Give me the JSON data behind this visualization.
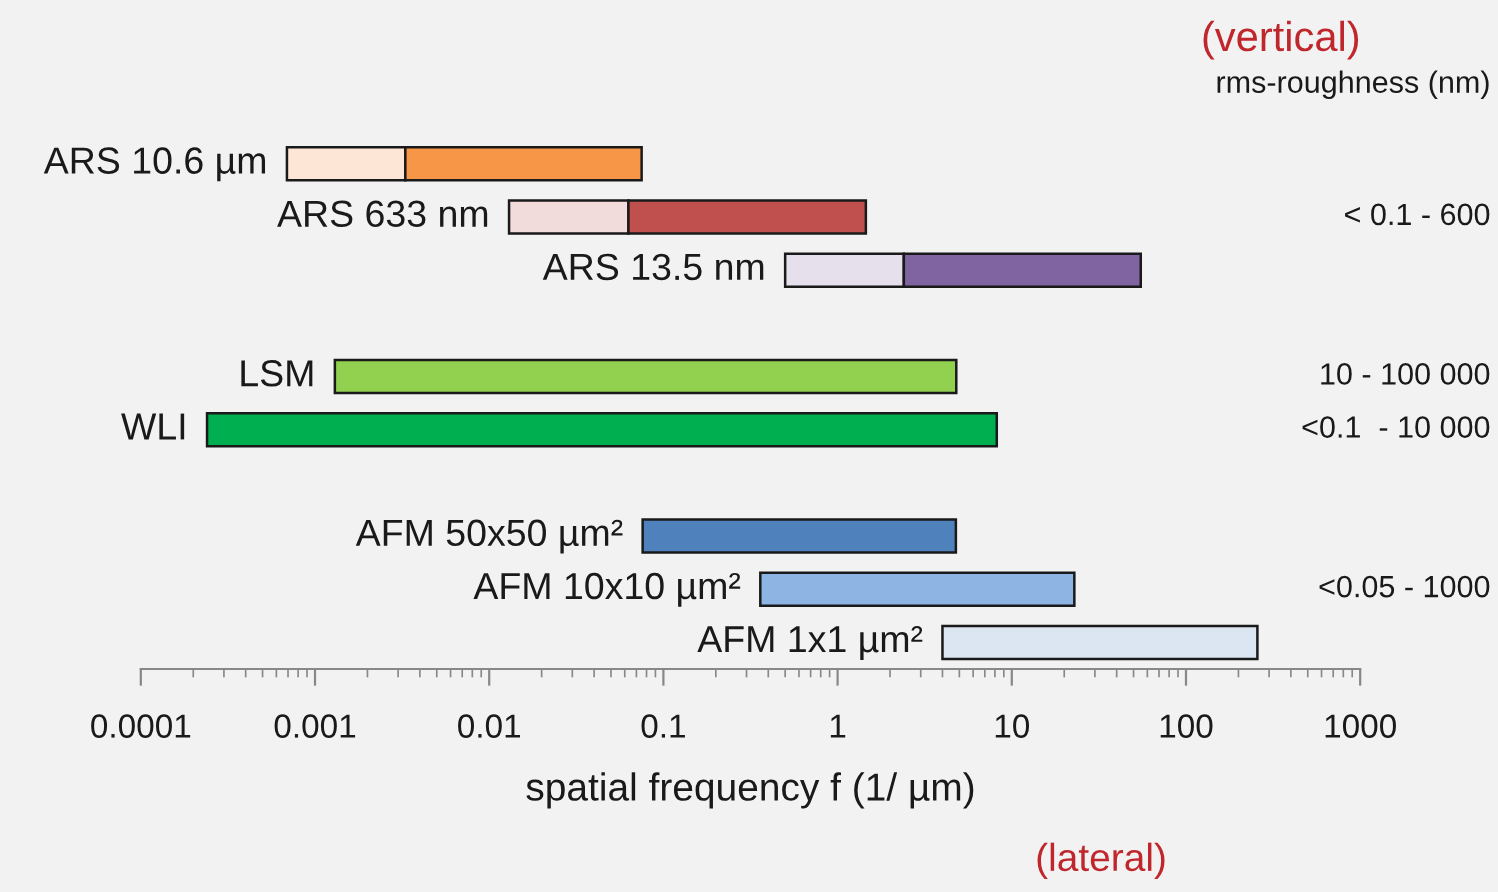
{
  "chart_data": {
    "type": "bar",
    "orientation": "horizontal",
    "categories": [
      "ARS 10.6 µm",
      "ARS 633 nm",
      "ARS 13.5 nm",
      null,
      "LSM",
      "WLI",
      null,
      "AFM 50x50 µm²",
      "AFM 10x10 µm²",
      "AFM 1x1 µm²"
    ],
    "series": [
      {
        "colors": [
          "#fde6d6",
          "#f2dcdb",
          "#e5e0ec",
          null,
          null,
          null,
          null,
          null,
          null,
          null
        ],
        "base": [
          0.00069,
          0.013,
          0.5,
          null,
          null,
          null,
          null,
          null,
          null,
          null
        ],
        "values": [
          0.00261,
          0.05,
          1.9,
          null,
          null,
          null,
          null,
          null,
          null,
          null
        ]
      },
      {
        "colors": [
          "#f79646",
          "#c0504d",
          "#8064a2",
          null,
          "#92d050",
          "#00b050",
          null,
          "#4f81bd",
          "#8eb4e3",
          "#dce6f2"
        ],
        "base": [
          0.0033,
          0.063,
          2.4,
          null,
          0.0013,
          0.00024,
          null,
          0.076,
          0.36,
          4
        ],
        "values": [
          0.0717,
          1.39,
          52.6,
          null,
          4.8,
          8.2,
          null,
          4.7,
          22.5,
          253
        ]
      }
    ],
    "log": "x",
    "xlim": [
      0.0001,
      1000
    ],
    "xticks": [
      0.0001,
      0.001,
      0.01,
      0.1,
      1,
      10,
      100,
      1000
    ],
    "xlabel": "spatial frequency f (1/ µm)",
    "annotations": [
      "(lateral)",
      "(vertical)",
      "rms-roughness (nm)",
      "< 0.1 - 600",
      "10 - 100 000",
      "<0.1  - 10 000",
      "<0.05 - 1000"
    ],
    "grid": false,
    "legend": false
  }
}
